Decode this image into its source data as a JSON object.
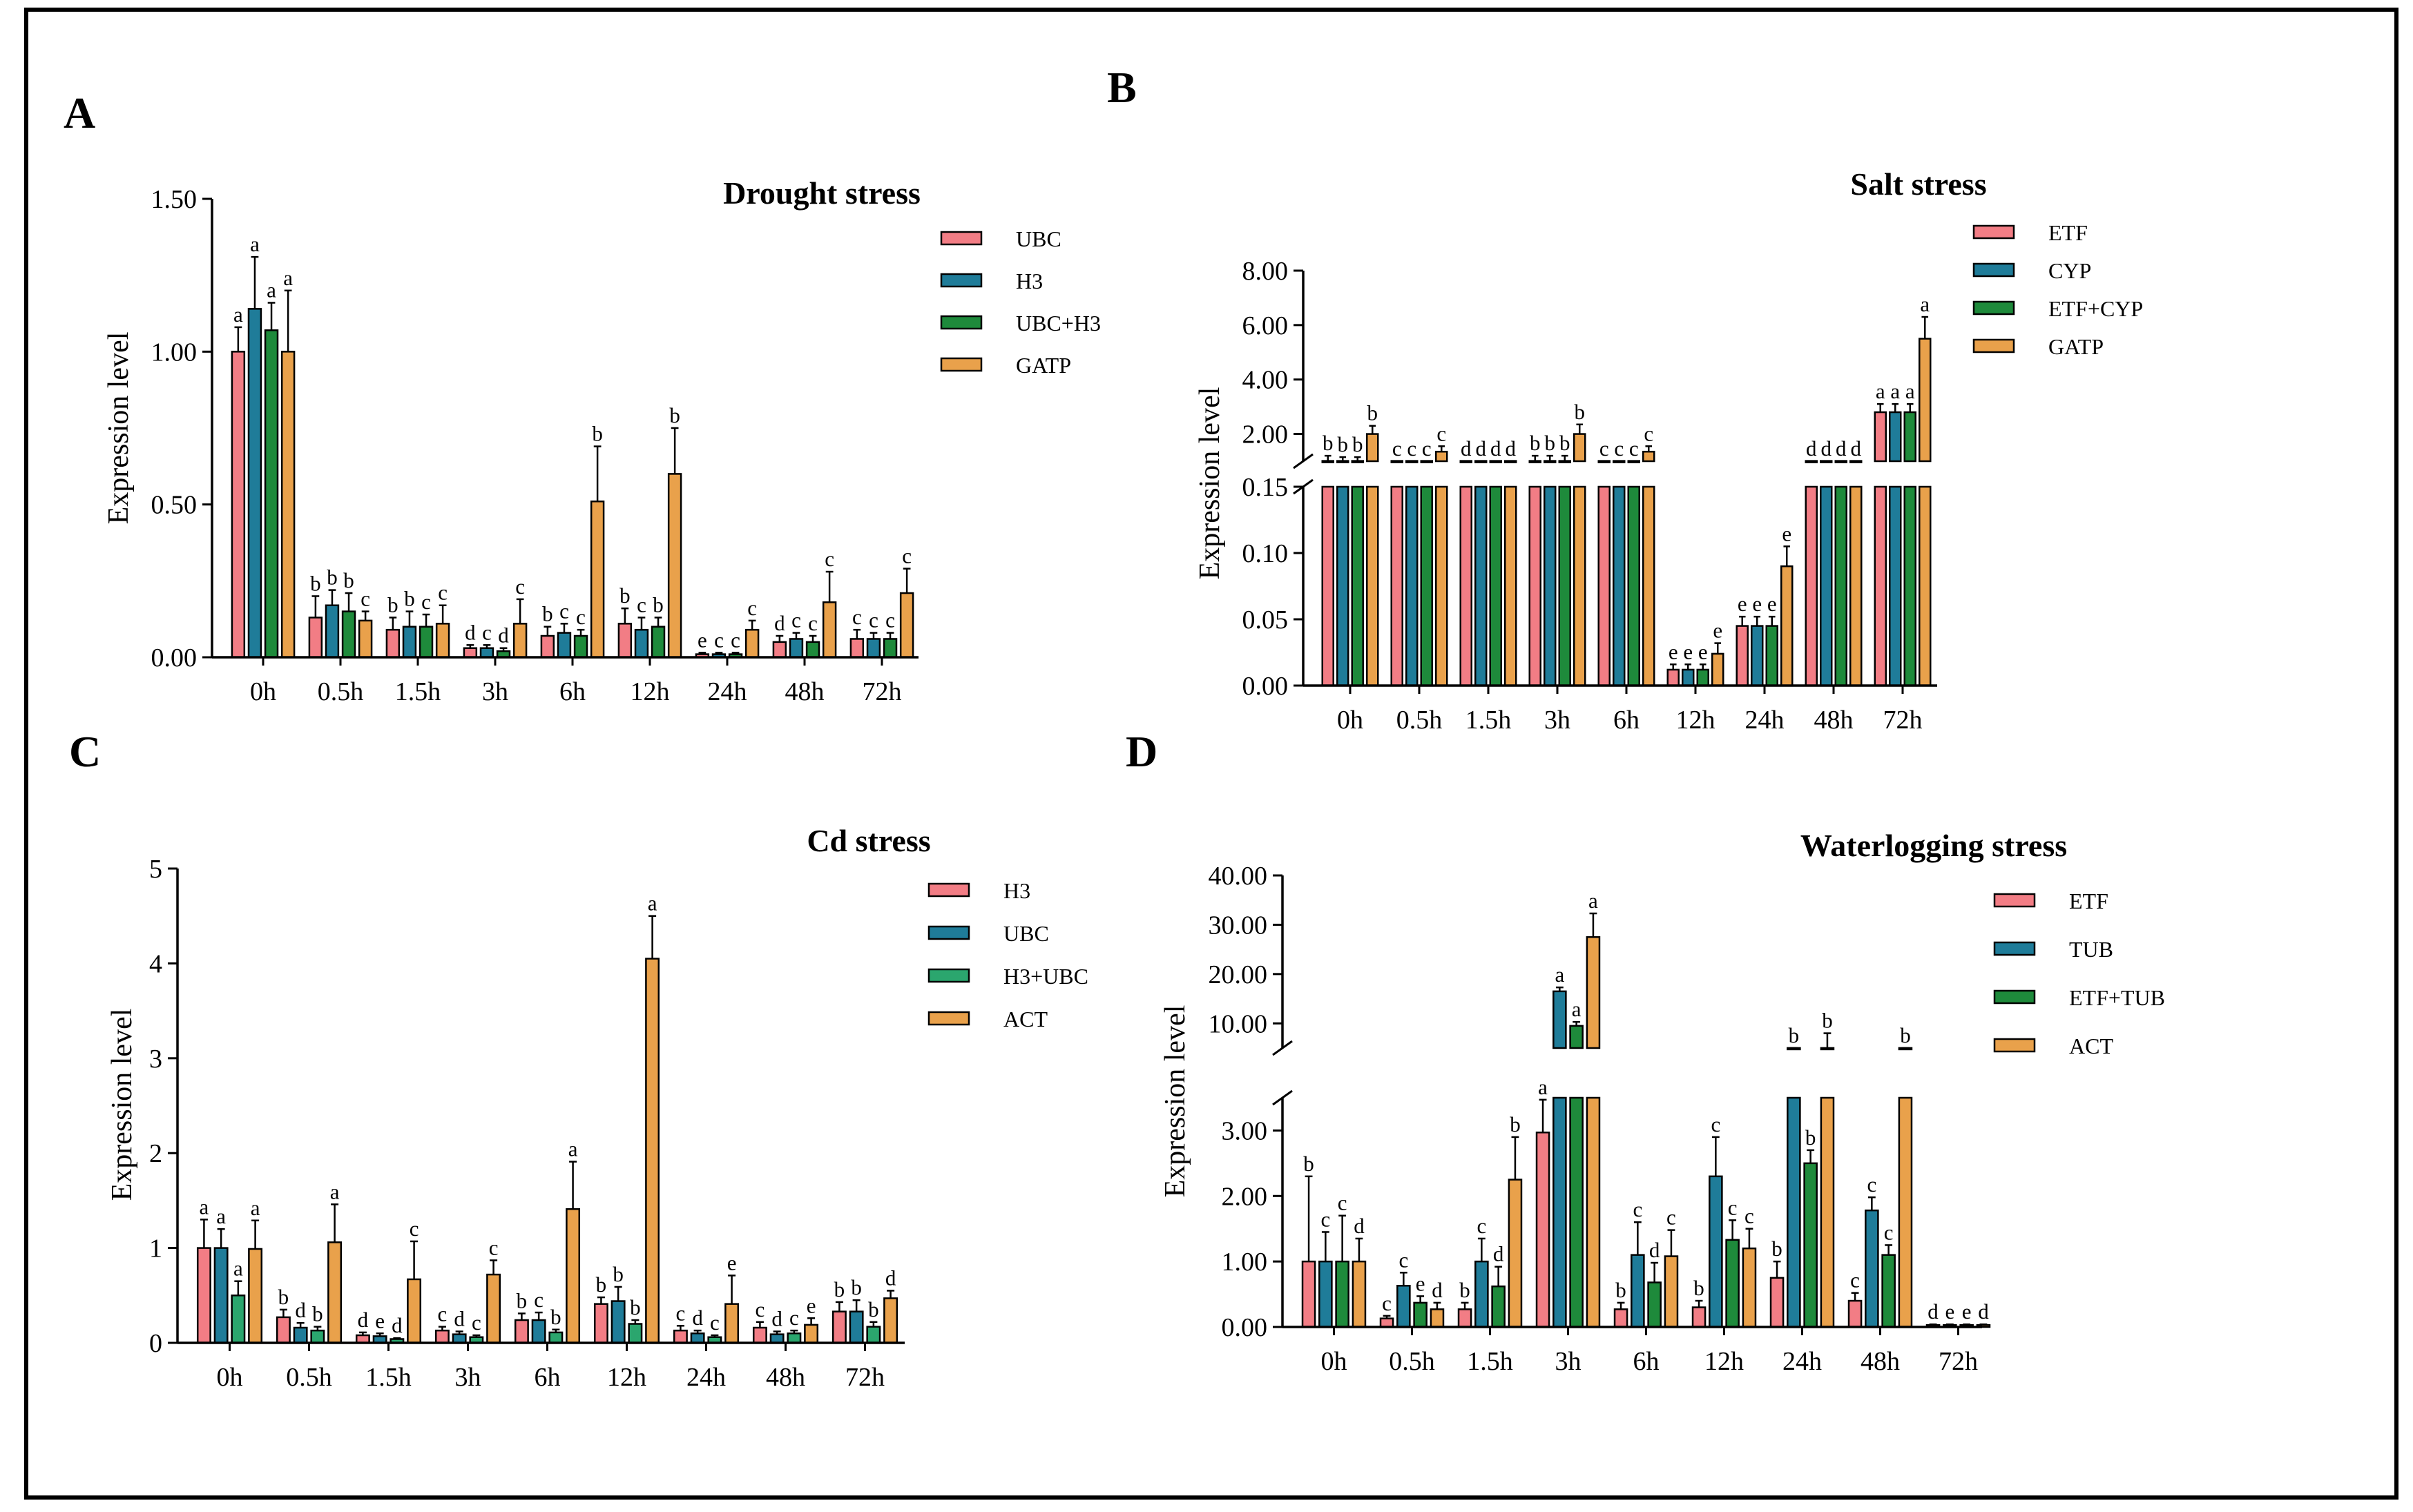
{
  "colors": {
    "c1": "#F27D85",
    "c2": "#1F7C99",
    "c3": "#1E8A3B",
    "c3b": "#2BA66E",
    "c4": "#E9A14B"
  },
  "categories": [
    "0h",
    "0.5h",
    "1.5h",
    "3h",
    "6h",
    "12h",
    "24h",
    "48h",
    "72h"
  ],
  "chart_data": [
    {
      "panel": "A",
      "type": "bar",
      "title": "Drought stress",
      "ylabel": "Expression level",
      "xlabel": "",
      "ylim": [
        0,
        1.5
      ],
      "yticks": [
        "0.00",
        "0.50",
        "1.00",
        "1.50"
      ],
      "categories": [
        "0h",
        "0.5h",
        "1.5h",
        "3h",
        "6h",
        "12h",
        "24h",
        "48h",
        "72h"
      ],
      "series": [
        {
          "name": "UBC",
          "values": [
            1.0,
            0.13,
            0.09,
            0.03,
            0.07,
            0.11,
            0.01,
            0.05,
            0.06
          ],
          "err": [
            0.08,
            0.07,
            0.04,
            0.01,
            0.03,
            0.05,
            0.005,
            0.02,
            0.03
          ],
          "letters": [
            "a",
            "b",
            "b",
            "d",
            "b",
            "b",
            "e",
            "d",
            "c"
          ]
        },
        {
          "name": "H3",
          "values": [
            1.14,
            0.17,
            0.1,
            0.03,
            0.08,
            0.09,
            0.01,
            0.06,
            0.06
          ],
          "err": [
            0.17,
            0.05,
            0.05,
            0.01,
            0.03,
            0.04,
            0.005,
            0.02,
            0.02
          ],
          "letters": [
            "a",
            "b",
            "b",
            "c",
            "c",
            "c",
            "c",
            "c",
            "c"
          ]
        },
        {
          "name": "UBC+H3",
          "values": [
            1.07,
            0.15,
            0.1,
            0.02,
            0.07,
            0.1,
            0.01,
            0.05,
            0.06
          ],
          "err": [
            0.09,
            0.06,
            0.04,
            0.01,
            0.02,
            0.03,
            0.005,
            0.02,
            0.02
          ],
          "letters": [
            "a",
            "b",
            "c",
            "d",
            "c",
            "b",
            "c",
            "c",
            "c"
          ]
        },
        {
          "name": "GATP",
          "values": [
            1.0,
            0.12,
            0.11,
            0.11,
            0.51,
            0.6,
            0.09,
            0.18,
            0.21
          ],
          "err": [
            0.2,
            0.03,
            0.06,
            0.08,
            0.18,
            0.15,
            0.03,
            0.1,
            0.08
          ],
          "letters": [
            "a",
            "c",
            "c",
            "c",
            "b",
            "b",
            "c",
            "c",
            "c"
          ]
        }
      ]
    },
    {
      "panel": "B",
      "type": "bar",
      "title": "Salt stress",
      "ylabel": "Expression level",
      "xlabel": "",
      "broken_axis": true,
      "ylim_lower": [
        0,
        0.15
      ],
      "ylim_upper": [
        1,
        8
      ],
      "yticks_lower": [
        "0.00",
        "0.05",
        "0.10",
        "0.15"
      ],
      "yticks_upper": [
        "2.00",
        "4.00",
        "6.00",
        "8.00"
      ],
      "categories": [
        "0h",
        "0.5h",
        "1.5h",
        "3h",
        "6h",
        "12h",
        "24h",
        "48h",
        "72h"
      ],
      "series": [
        {
          "name": "ETF",
          "values": [
            1.0,
            0.8,
            0.4,
            1.0,
            0.75,
            0.012,
            0.045,
            0.45,
            2.8
          ],
          "err": [
            0.2,
            0.15,
            0.05,
            0.2,
            0.1,
            0.004,
            0.007,
            0.1,
            0.3
          ],
          "letters": [
            "b",
            "c",
            "d",
            "b",
            "c",
            "e",
            "e",
            "d",
            "a"
          ]
        },
        {
          "name": "CYP",
          "values": [
            0.95,
            0.75,
            0.4,
            1.0,
            0.75,
            0.012,
            0.045,
            0.45,
            2.8
          ],
          "err": [
            0.2,
            0.15,
            0.05,
            0.2,
            0.1,
            0.004,
            0.007,
            0.1,
            0.3
          ],
          "letters": [
            "b",
            "c",
            "d",
            "b",
            "c",
            "e",
            "e",
            "d",
            "a"
          ]
        },
        {
          "name": "ETF+CYP",
          "values": [
            0.95,
            0.75,
            0.4,
            1.0,
            0.75,
            0.012,
            0.045,
            0.45,
            2.8
          ],
          "err": [
            0.2,
            0.15,
            0.05,
            0.2,
            0.1,
            0.004,
            0.007,
            0.1,
            0.3
          ],
          "letters": [
            "b",
            "c",
            "d",
            "b",
            "c",
            "e",
            "e",
            "d",
            "a"
          ]
        },
        {
          "name": "GATP",
          "values": [
            2.0,
            1.35,
            0.8,
            2.0,
            1.35,
            0.024,
            0.09,
            0.8,
            5.5
          ],
          "err": [
            0.3,
            0.2,
            0.15,
            0.35,
            0.2,
            0.008,
            0.015,
            0.15,
            0.8
          ],
          "letters": [
            "b",
            "c",
            "d",
            "b",
            "c",
            "e",
            "e",
            "d",
            "a"
          ]
        }
      ]
    },
    {
      "panel": "C",
      "type": "bar",
      "title": "Cd stress",
      "ylabel": "Expression level",
      "xlabel": "",
      "ylim": [
        0,
        5
      ],
      "yticks": [
        "0",
        "1",
        "2",
        "3",
        "4",
        "5"
      ],
      "categories": [
        "0h",
        "0.5h",
        "1.5h",
        "3h",
        "6h",
        "12h",
        "24h",
        "48h",
        "72h"
      ],
      "series": [
        {
          "name": "H3",
          "values": [
            1.0,
            0.27,
            0.08,
            0.13,
            0.24,
            0.41,
            0.13,
            0.16,
            0.33
          ],
          "err": [
            0.3,
            0.08,
            0.03,
            0.04,
            0.07,
            0.07,
            0.05,
            0.06,
            0.1
          ],
          "letters": [
            "a",
            "b",
            "d",
            "c",
            "b",
            "b",
            "c",
            "c",
            "b"
          ]
        },
        {
          "name": "UBC",
          "values": [
            1.0,
            0.16,
            0.07,
            0.09,
            0.24,
            0.44,
            0.1,
            0.09,
            0.33
          ],
          "err": [
            0.2,
            0.05,
            0.03,
            0.03,
            0.08,
            0.15,
            0.03,
            0.03,
            0.12
          ],
          "letters": [
            "a",
            "d",
            "e",
            "d",
            "c",
            "b",
            "d",
            "d",
            "b"
          ]
        },
        {
          "name": "H3+UBC",
          "values": [
            0.5,
            0.13,
            0.04,
            0.06,
            0.11,
            0.2,
            0.06,
            0.1,
            0.17
          ],
          "err": [
            0.15,
            0.04,
            0.01,
            0.02,
            0.03,
            0.04,
            0.02,
            0.03,
            0.05
          ],
          "letters": [
            "a",
            "b",
            "d",
            "c",
            "b",
            "b",
            "c",
            "c",
            "b"
          ]
        },
        {
          "name": "ACT",
          "values": [
            0.99,
            1.06,
            0.67,
            0.72,
            1.41,
            4.05,
            0.41,
            0.19,
            0.47
          ],
          "err": [
            0.3,
            0.4,
            0.4,
            0.15,
            0.5,
            0.45,
            0.3,
            0.07,
            0.08
          ],
          "letters": [
            "a",
            "a",
            "c",
            "c",
            "a",
            "a",
            "e",
            "e",
            "d"
          ]
        }
      ]
    },
    {
      "panel": "D",
      "type": "bar",
      "title": "Waterlogging stress",
      "ylabel": "Expression level",
      "xlabel": "",
      "broken_axis": true,
      "ylim_lower": [
        0,
        3.5
      ],
      "ylim_upper": [
        5,
        40
      ],
      "yticks_lower": [
        "0.00",
        "1.00",
        "2.00",
        "3.00"
      ],
      "yticks_upper": [
        "10.00",
        "20.00",
        "30.00",
        "40.00"
      ],
      "categories": [
        "0h",
        "0.5h",
        "1.5h",
        "3h",
        "6h",
        "12h",
        "24h",
        "48h",
        "72h"
      ],
      "series": [
        {
          "name": "ETF",
          "values": [
            1.0,
            0.13,
            0.27,
            2.97,
            0.27,
            0.3,
            0.75,
            0.4,
            0.03
          ],
          "err": [
            1.3,
            0.04,
            0.1,
            0.5,
            0.1,
            0.1,
            0.25,
            0.12,
            0.01
          ],
          "letters": [
            "b",
            "c",
            "b",
            "a",
            "b",
            "b",
            "b",
            "c",
            "d"
          ]
        },
        {
          "name": "TUB",
          "values": [
            1.0,
            0.63,
            1.0,
            16.5,
            1.1,
            2.3,
            4.5,
            1.78,
            0.03
          ],
          "err": [
            0.45,
            0.2,
            0.35,
            0.8,
            0.5,
            0.6,
            0.3,
            0.2,
            0.01
          ],
          "letters": [
            "c",
            "c",
            "c",
            "a",
            "c",
            "c",
            "b",
            "c",
            "e"
          ]
        },
        {
          "name": "ETF+TUB",
          "values": [
            1.0,
            0.37,
            0.62,
            9.5,
            0.68,
            1.33,
            2.5,
            1.1,
            0.03
          ],
          "err": [
            0.7,
            0.1,
            0.3,
            0.8,
            0.3,
            0.3,
            0.2,
            0.15,
            0.01
          ],
          "letters": [
            "c",
            "e",
            "d",
            "a",
            "d",
            "c",
            "b",
            "c",
            "e"
          ]
        },
        {
          "name": "ACT",
          "values": [
            1.0,
            0.27,
            2.25,
            27.5,
            1.08,
            1.2,
            5.0,
            4.5,
            0.03
          ],
          "err": [
            0.35,
            0.1,
            0.65,
            4.8,
            0.4,
            0.3,
            3.0,
            0.5,
            0.01
          ],
          "letters": [
            "d",
            "d",
            "b",
            "a",
            "c",
            "c",
            "b",
            "b",
            "d"
          ]
        }
      ]
    }
  ]
}
